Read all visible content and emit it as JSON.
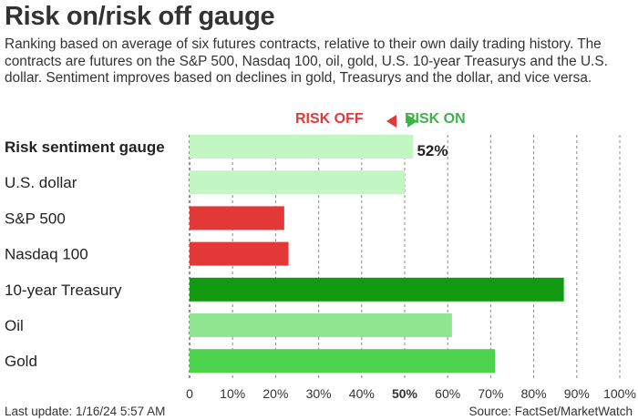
{
  "chart_data": {
    "type": "bar",
    "orientation": "horizontal",
    "title": "Risk on/risk off gauge",
    "subtitle": "Ranking based on average of six futures contracts, relative to their own daily trading history. The contracts are futures on the S&P 500, Nasdaq 100, oil, gold, U.S. 10-year Treasurys and the U.S. dollar. Sentiment improves based on declines in gold, Treasurys and the dollar, and vice versa.",
    "legend": {
      "risk_off": "RISK OFF",
      "risk_on": "RISK ON",
      "placement": "top-center"
    },
    "categories": [
      "Risk sentiment gauge",
      "U.S. dollar",
      "S&P 500",
      "Nasdaq 100",
      "10-year Treasury",
      "Oil",
      "Gold"
    ],
    "values": [
      52,
      50,
      22,
      23,
      87,
      61,
      71
    ],
    "colors": [
      "#c2f6c2",
      "#c2f6c2",
      "#e23838",
      "#e23838",
      "#139a13",
      "#90e690",
      "#4cd24c"
    ],
    "data_labels": [
      "52%",
      "",
      "",
      "",
      "",
      "",
      ""
    ],
    "xlim": [
      0,
      100
    ],
    "xticks": [
      "0",
      "10%",
      "20%",
      "30%",
      "40%",
      "50%",
      "60%",
      "70%",
      "80%",
      "90%",
      "100%"
    ],
    "grid": "vertical-dashed"
  },
  "footer": {
    "last_update": "Last update: 1/16/24 5:57 AM",
    "source": "Source: FactSet/MarketWatch"
  }
}
